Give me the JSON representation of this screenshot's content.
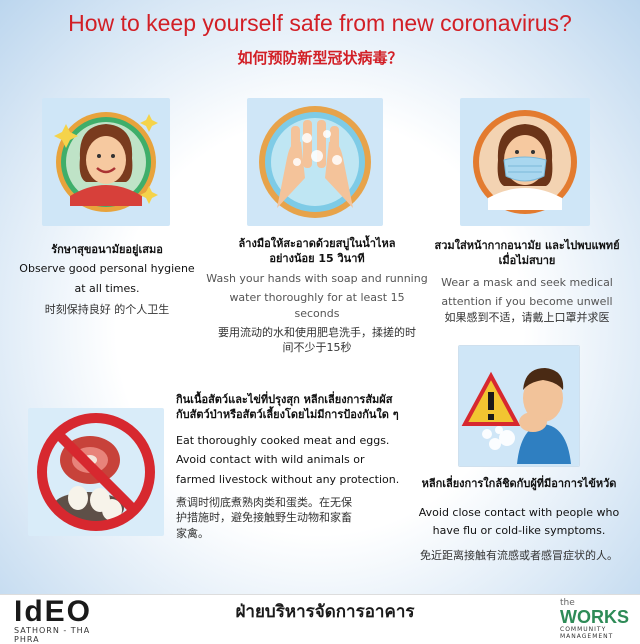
{
  "header": {
    "title": "How to keep yourself safe from new coronavirus?",
    "subtitle": "如何预防新型冠状病毒？"
  },
  "tips": [
    {
      "icon": "happy-woman-icon",
      "thai": "รักษาสุขอนามัยอยู่เสมอ",
      "english": [
        "Observe good personal hygiene",
        "at all times."
      ],
      "chinese": "时刻保持良好 的个人卫生"
    },
    {
      "icon": "hand-washing-icon",
      "thai": [
        "ล้างมือให้สะอาดด้วยสบู่ในน้ำไหล",
        "อย่างน้อย 15 วินาที"
      ],
      "english": [
        "Wash your hands with soap and running",
        "water thoroughly for at least 15 seconds"
      ],
      "chinese": [
        "要用流动的水和使用肥皂洗手，揉搓的时",
        "间不少于15秒"
      ]
    },
    {
      "icon": "masked-woman-icon",
      "thai": [
        "สวมใส่หน้ากากอนามัย และไปพบแพทย์",
        "เมื่อไม่สบาย"
      ],
      "english": [
        "Wear a mask and seek medical",
        "attention if you become unwell"
      ],
      "chinese": "如果感到不适，请戴上口罩并求医"
    },
    {
      "icon": "no-raw-meat-icon",
      "thai": [
        "กินเนื้อสัตว์และไข่ที่ปรุงสุก หลีกเลี่ยงการสัมผัส",
        "กับสัตว์ป่าหรือสัตว์เลี้ยงโดยไม่มีการป้องกันใด ๆ"
      ],
      "english": [
        "Eat thoroughly cooked meat and eggs.",
        "Avoid contact with wild animals or",
        "farmed livestock without any protection."
      ],
      "chinese": [
        "煮调时彻底煮熟肉类和蛋类。在无保",
        "护措施时，避免接触野生动物和家畜",
        "家禽。"
      ]
    },
    {
      "icon": "coughing-man-icon",
      "thai": "หลีกเลี่ยงการใกล้ชิดกับผู้ที่มีอาการไข้หวัด",
      "english": [
        "Avoid close contact with people who",
        "have flu or cold-like symptoms."
      ],
      "chinese": "免近距离接触有流感或者感冒症状的人。"
    }
  ],
  "footer": {
    "left_logo": "IdEO",
    "left_sub": "SATHORN - THA PHRA",
    "center": "ฝ่ายบริหารจัดการอาคาร",
    "right_small": "the",
    "right_main": "WORKS",
    "right_sub": "COMMUNITY MANAGEMENT"
  },
  "colors": {
    "title": "#d21f26",
    "panel_bg": "#cfe6f7"
  }
}
